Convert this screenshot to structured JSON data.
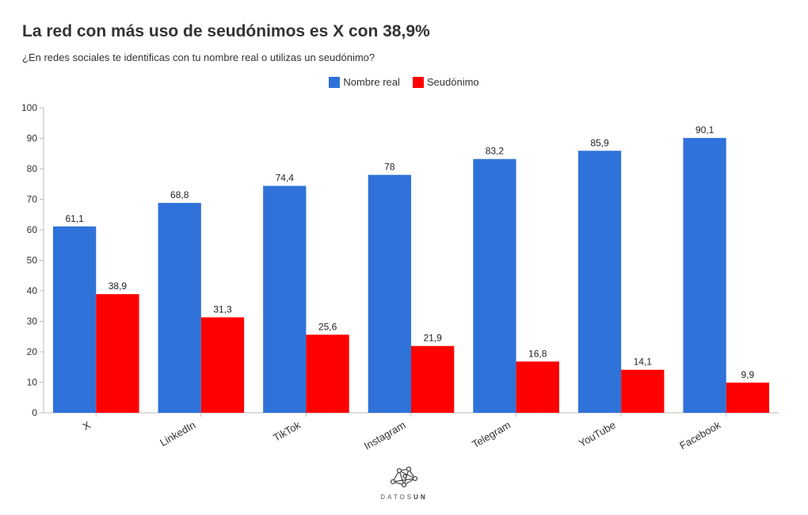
{
  "chart_data": {
    "type": "bar",
    "title": "La red con más uso de seudónimos es X con 38,9%",
    "subtitle": "¿En redes sociales te identificas con tu nombre real o utilizas un seudónimo?",
    "categories": [
      "X",
      "LinkedIn",
      "TikTok",
      "Instagram",
      "Telegram",
      "YouTube",
      "Facebook"
    ],
    "series": [
      {
        "name": "Nombre real",
        "color": "#2f72d9",
        "values": [
          61.1,
          68.8,
          74.4,
          78,
          83.2,
          85.9,
          90.1
        ],
        "labels": [
          "61,1",
          "68,8",
          "74,4",
          "78",
          "83,2",
          "85,9",
          "90,1"
        ]
      },
      {
        "name": "Seudónimo",
        "color": "#ff0000",
        "values": [
          38.9,
          31.3,
          25.6,
          21.9,
          16.8,
          14.1,
          9.9
        ],
        "labels": [
          "38,9",
          "31,3",
          "25,6",
          "21,9",
          "16,8",
          "14,1",
          "9,9"
        ]
      }
    ],
    "ylim": [
      0,
      100
    ],
    "yticks": [
      0,
      10,
      20,
      30,
      40,
      50,
      60,
      70,
      80,
      90,
      100
    ],
    "xlabel": "",
    "ylabel": "",
    "legend_position": "top-center"
  },
  "logo": {
    "text_a": "DATOS",
    "text_b": "UN"
  }
}
